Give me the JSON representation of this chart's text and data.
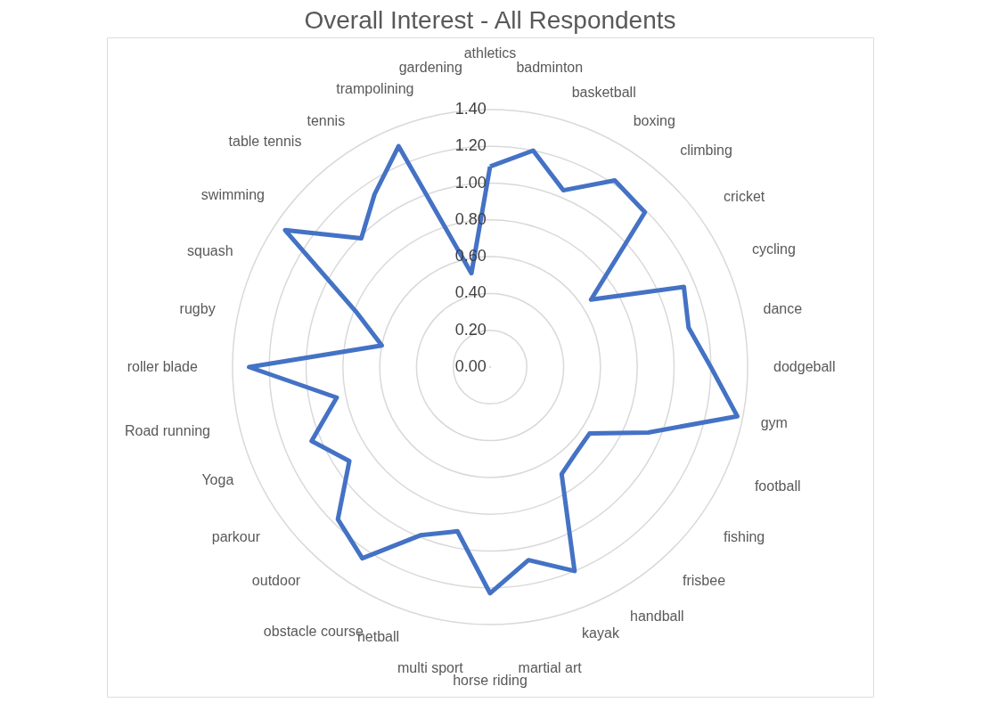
{
  "chart_data": {
    "type": "radar",
    "title": "Overall  Interest - All Respondents",
    "categories": [
      "athletics",
      "badminton",
      "basketball",
      "boxing",
      "climbing",
      "cricket",
      "cycling",
      "dance",
      "dodgeball",
      "gym",
      "football",
      "fishing",
      "frisbee",
      "handball",
      "kayak",
      "martial art",
      "horse riding",
      "multi sport",
      "netball",
      "obstacle course",
      "outdoor",
      "parkour",
      "Yoga",
      "Road running",
      "roller blade",
      "rugby",
      "squash",
      "swimming",
      "table tennis",
      "tennis",
      "trampolining",
      "gardening"
    ],
    "series": [
      {
        "color": "#4472c4",
        "values": [
          1.09,
          1.2,
          1.04,
          1.22,
          1.19,
          0.66,
          1.14,
          1.1,
          1.2,
          1.37,
          0.93,
          0.65,
          0.66,
          0.7,
          1.2,
          1.07,
          1.23,
          0.91,
          0.99,
          1.25,
          1.17,
          0.92,
          1.05,
          0.85,
          1.31,
          0.6,
          0.79,
          1.34,
          0.99,
          1.13,
          1.3,
          0.52
        ]
      }
    ],
    "ylim": [
      0,
      1.4
    ],
    "yticks": [
      {
        "value": 0,
        "label": "0.00"
      },
      {
        "value": 0.2,
        "label": "0.20"
      },
      {
        "value": 0.4,
        "label": "0.40"
      },
      {
        "value": 0.6,
        "label": "0.60"
      },
      {
        "value": 0.8,
        "label": "0.80"
      },
      {
        "value": 1.0,
        "label": "1.00"
      },
      {
        "value": 1.2,
        "label": "1.20"
      },
      {
        "value": 1.4,
        "label": "1.40"
      }
    ],
    "grid": true
  }
}
